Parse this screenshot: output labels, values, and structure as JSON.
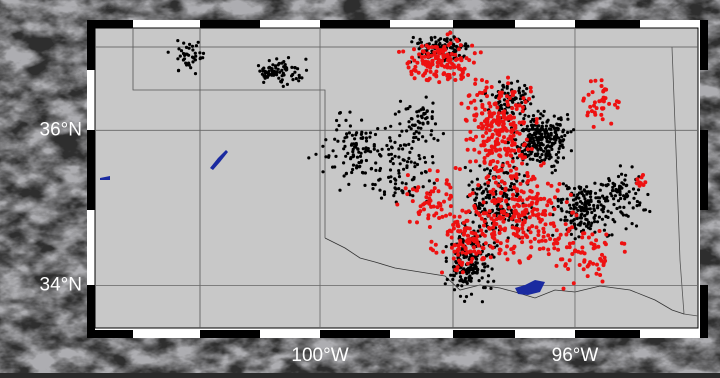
{
  "map": {
    "lonlim": [
      -103.53,
      -94.07
    ],
    "latlim": [
      33.45,
      37.32
    ],
    "lat_ticks": [
      {
        "value": 36,
        "label": "36°N"
      },
      {
        "value": 34,
        "label": "34°N"
      }
    ],
    "lon_ticks": [
      {
        "value": -100,
        "label": "100°W"
      },
      {
        "value": -96,
        "label": "96°W"
      }
    ]
  }
}
